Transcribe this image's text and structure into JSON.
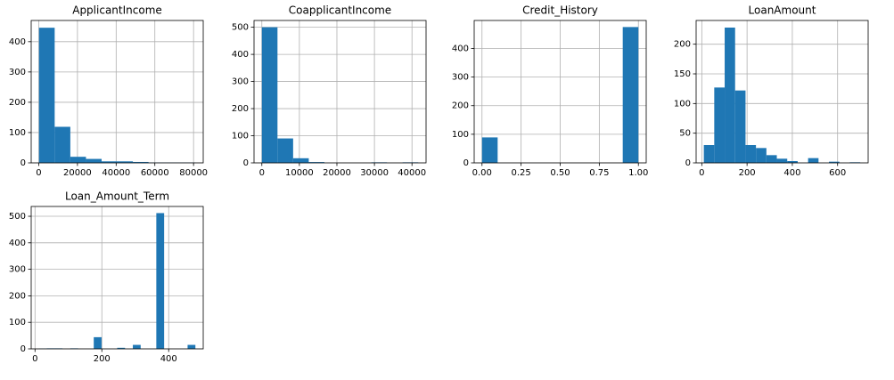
{
  "chart_data": [
    {
      "type": "histogram",
      "title": "ApplicantIncome",
      "color": "#1f77b4",
      "grid": true,
      "bins": [
        150,
        8235,
        16320,
        24405,
        32490,
        40575,
        48660,
        56745,
        64830,
        72915,
        81000
      ],
      "values": [
        446,
        119,
        20,
        13,
        5,
        5,
        3,
        1,
        1,
        1
      ],
      "xlim": [
        -3900,
        85000
      ],
      "xticks": [
        0,
        20000,
        40000,
        60000,
        80000
      ],
      "ylim": [
        0,
        470
      ],
      "yticks": [
        0,
        100,
        200,
        300,
        400
      ]
    },
    {
      "type": "histogram",
      "title": "CoapplicantIncome",
      "color": "#1f77b4",
      "grid": true,
      "bins": [
        0,
        4166.7,
        8333.4,
        12500,
        16666.8,
        20833.5,
        25000.2,
        29166.9,
        33333.6,
        37500.3,
        41667
      ],
      "values": [
        500,
        90,
        17,
        3,
        0,
        0,
        0,
        2,
        0,
        2
      ],
      "xlim": [
        -2083,
        43750
      ],
      "xticks": [
        0,
        10000,
        20000,
        30000,
        40000
      ],
      "ylim": [
        0,
        525
      ],
      "yticks": [
        0,
        100,
        200,
        300,
        400,
        500
      ]
    },
    {
      "type": "histogram",
      "title": "Credit_History",
      "color": "#1f77b4",
      "grid": true,
      "bins": [
        0,
        0.1,
        0.2,
        0.3,
        0.4,
        0.5,
        0.6,
        0.7,
        0.8,
        0.9,
        1
      ],
      "values": [
        89,
        0,
        0,
        0,
        0,
        0,
        0,
        0,
        0,
        475
      ],
      "xlim": [
        -0.05,
        1.05
      ],
      "xticks": [
        {
          "value": 0,
          "label": "0.00"
        },
        {
          "value": 0.25,
          "label": "0.25"
        },
        {
          "value": 0.5,
          "label": "0.50"
        },
        {
          "value": 0.75,
          "label": "0.75"
        },
        {
          "value": 1,
          "label": "1.00"
        }
      ],
      "ylim": [
        0,
        498
      ],
      "yticks": [
        0,
        100,
        200,
        300,
        400
      ]
    },
    {
      "type": "histogram",
      "title": "LoanAmount",
      "color": "#1f77b4",
      "grid": true,
      "bins": [
        9,
        55.07,
        101.13,
        147.2,
        193.27,
        239.33,
        285.4,
        331.47,
        377.53,
        423.6,
        469.67,
        515.73,
        561.8,
        607.87,
        653.93,
        700
      ],
      "values": [
        30,
        127,
        228,
        122,
        30,
        25,
        13,
        7,
        3,
        0,
        8,
        0,
        2,
        0,
        1
      ],
      "xlim": [
        -25,
        735
      ],
      "xticks": [
        0,
        200,
        400,
        600
      ],
      "ylim": [
        0,
        240
      ],
      "yticks": [
        0,
        50,
        100,
        150,
        200
      ]
    },
    {
      "type": "histogram",
      "title": "Loan_Amount_Term",
      "color": "#1f77b4",
      "grid": true,
      "bins": [
        12,
        35.4,
        58.8,
        82.2,
        105.6,
        129,
        152.4,
        175.8,
        199.2,
        222.6,
        246,
        269.4,
        292.8,
        316.2,
        339.6,
        363,
        386.4,
        409.8,
        433.2,
        456.6,
        480
      ],
      "values": [
        1,
        2,
        2,
        0,
        2,
        0,
        0,
        44,
        0,
        0,
        4,
        0,
        15,
        0,
        0,
        512,
        0,
        0,
        0,
        15
      ],
      "xlim": [
        -11.4,
        503.4
      ],
      "xticks": [
        0,
        200,
        400
      ],
      "ylim": [
        0,
        537
      ],
      "yticks": [
        0,
        100,
        200,
        300,
        400,
        500
      ]
    }
  ]
}
